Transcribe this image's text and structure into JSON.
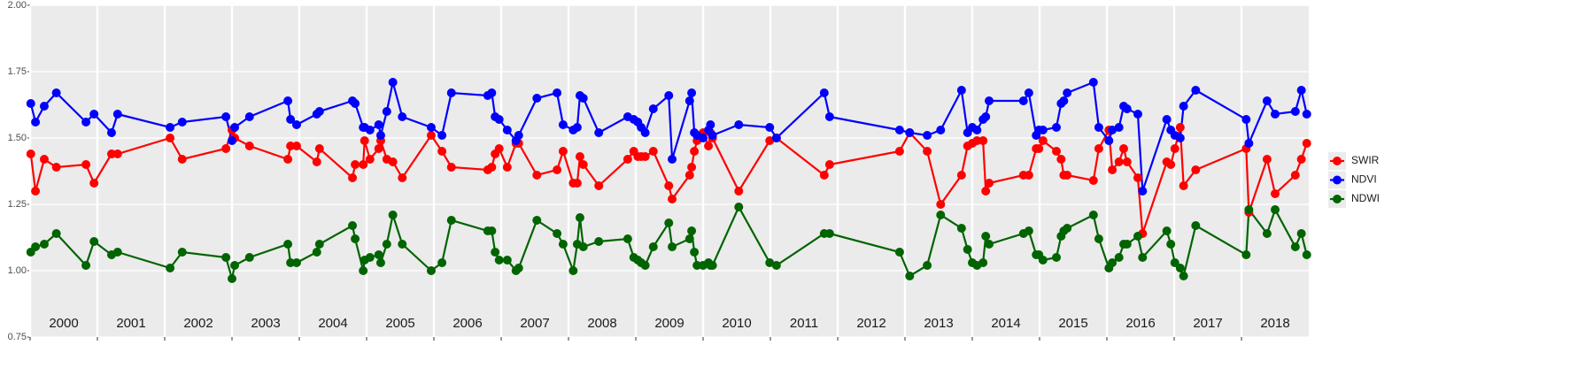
{
  "chart_data": {
    "type": "line",
    "x": [
      2000.01,
      2000.08,
      2000.21,
      2000.39,
      2000.83,
      2000.95,
      2001.21,
      2001.3,
      2002.08,
      2002.26,
      2002.91,
      2003.0,
      2003.04,
      2003.26,
      2003.83,
      2003.87,
      2003.96,
      2004.26,
      2004.3,
      2004.79,
      2004.83,
      2004.95,
      2004.97,
      2005.05,
      2005.18,
      2005.21,
      2005.3,
      2005.39,
      2005.53,
      2005.96,
      2006.12,
      2006.26,
      2006.8,
      2006.86,
      2006.91,
      2006.97,
      2007.09,
      2007.22,
      2007.26,
      2007.53,
      2007.83,
      2007.92,
      2008.07,
      2008.13,
      2008.17,
      2008.22,
      2008.45,
      2008.88,
      2008.97,
      2009.03,
      2009.08,
      2009.14,
      2009.26,
      2009.49,
      2009.54,
      2009.8,
      2009.83,
      2009.87,
      2009.91,
      2010.0,
      2010.08,
      2010.11,
      2010.14,
      2010.53,
      2010.99,
      2011.09,
      2011.8,
      2011.88,
      2012.92,
      2013.07,
      2013.33,
      2013.53,
      2013.84,
      2013.93,
      2014.0,
      2014.07,
      2014.16,
      2014.2,
      2014.25,
      2014.76,
      2014.84,
      2014.95,
      2014.99,
      2015.05,
      2015.25,
      2015.32,
      2015.36,
      2015.41,
      2015.8,
      2015.88,
      2016.03,
      2016.08,
      2016.18,
      2016.25,
      2016.3,
      2016.46,
      2016.53,
      2016.89,
      2016.95,
      2017.01,
      2017.09,
      2017.14,
      2017.32,
      2018.07,
      2018.11,
      2018.38,
      2018.5,
      2018.8,
      2018.89,
      2018.97
    ],
    "series": [
      {
        "name": "SWIR",
        "color": "#ff0000",
        "values": [
          1.44,
          1.3,
          1.42,
          1.39,
          1.4,
          1.33,
          1.44,
          1.44,
          1.5,
          1.42,
          1.46,
          1.53,
          1.5,
          1.47,
          1.42,
          1.47,
          1.47,
          1.41,
          1.46,
          1.35,
          1.4,
          1.4,
          1.49,
          1.42,
          1.46,
          1.49,
          1.42,
          1.41,
          1.35,
          1.51,
          1.45,
          1.39,
          1.38,
          1.39,
          1.44,
          1.46,
          1.39,
          1.48,
          1.48,
          1.36,
          1.38,
          1.45,
          1.33,
          1.33,
          1.43,
          1.4,
          1.32,
          1.42,
          1.45,
          1.43,
          1.43,
          1.43,
          1.45,
          1.32,
          1.27,
          1.36,
          1.39,
          1.45,
          1.49,
          1.52,
          1.47,
          1.52,
          1.5,
          1.3,
          1.49,
          1.5,
          1.36,
          1.4,
          1.45,
          1.52,
          1.45,
          1.25,
          1.36,
          1.47,
          1.48,
          1.49,
          1.49,
          1.3,
          1.33,
          1.36,
          1.36,
          1.46,
          1.46,
          1.49,
          1.45,
          1.42,
          1.36,
          1.36,
          1.34,
          1.46,
          1.53,
          1.38,
          1.41,
          1.46,
          1.41,
          1.35,
          1.14,
          1.41,
          1.4,
          1.46,
          1.54,
          1.32,
          1.38,
          1.46,
          1.22,
          1.42,
          1.29,
          1.36,
          1.42,
          1.48
        ]
      },
      {
        "name": "NDVI",
        "color": "#0000ff",
        "values": [
          1.63,
          1.56,
          1.62,
          1.67,
          1.56,
          1.59,
          1.52,
          1.59,
          1.54,
          1.56,
          1.58,
          1.49,
          1.54,
          1.58,
          1.64,
          1.57,
          1.55,
          1.59,
          1.6,
          1.64,
          1.63,
          1.54,
          1.54,
          1.53,
          1.55,
          1.51,
          1.6,
          1.71,
          1.58,
          1.54,
          1.51,
          1.67,
          1.66,
          1.67,
          1.58,
          1.57,
          1.53,
          1.49,
          1.51,
          1.65,
          1.67,
          1.55,
          1.53,
          1.54,
          1.66,
          1.65,
          1.52,
          1.58,
          1.57,
          1.56,
          1.54,
          1.52,
          1.61,
          1.66,
          1.42,
          1.64,
          1.67,
          1.52,
          1.51,
          1.5,
          1.53,
          1.55,
          1.51,
          1.55,
          1.54,
          1.5,
          1.67,
          1.58,
          1.53,
          1.52,
          1.51,
          1.53,
          1.68,
          1.52,
          1.54,
          1.53,
          1.57,
          1.58,
          1.64,
          1.64,
          1.67,
          1.51,
          1.53,
          1.53,
          1.54,
          1.63,
          1.64,
          1.67,
          1.71,
          1.54,
          1.49,
          1.53,
          1.54,
          1.62,
          1.61,
          1.59,
          1.3,
          1.57,
          1.53,
          1.51,
          1.5,
          1.62,
          1.68,
          1.57,
          1.48,
          1.64,
          1.59,
          1.6,
          1.68,
          1.59
        ]
      },
      {
        "name": "NDWI",
        "color": "#006400",
        "values": [
          1.07,
          1.09,
          1.1,
          1.14,
          1.02,
          1.11,
          1.06,
          1.07,
          1.01,
          1.07,
          1.05,
          0.97,
          1.02,
          1.05,
          1.1,
          1.03,
          1.03,
          1.07,
          1.1,
          1.17,
          1.12,
          1.0,
          1.04,
          1.05,
          1.06,
          1.03,
          1.1,
          1.21,
          1.1,
          1.0,
          1.03,
          1.19,
          1.15,
          1.15,
          1.07,
          1.04,
          1.04,
          1.0,
          1.01,
          1.19,
          1.14,
          1.1,
          1.0,
          1.1,
          1.2,
          1.09,
          1.11,
          1.12,
          1.05,
          1.04,
          1.03,
          1.02,
          1.09,
          1.18,
          1.09,
          1.12,
          1.15,
          1.07,
          1.02,
          1.02,
          1.03,
          1.02,
          1.02,
          1.24,
          1.03,
          1.02,
          1.14,
          1.14,
          1.07,
          0.98,
          1.02,
          1.21,
          1.16,
          1.08,
          1.03,
          1.02,
          1.03,
          1.13,
          1.1,
          1.14,
          1.15,
          1.06,
          1.06,
          1.04,
          1.05,
          1.13,
          1.15,
          1.16,
          1.21,
          1.12,
          1.01,
          1.03,
          1.05,
          1.1,
          1.1,
          1.13,
          1.05,
          1.15,
          1.1,
          1.03,
          1.01,
          0.98,
          1.17,
          1.06,
          1.23,
          1.14,
          1.23,
          1.09,
          1.14,
          1.06
        ]
      }
    ],
    "xlim": [
      2000,
      2019
    ],
    "xticks": [
      2000,
      2001,
      2002,
      2003,
      2004,
      2005,
      2006,
      2007,
      2008,
      2009,
      2010,
      2011,
      2012,
      2013,
      2014,
      2015,
      2016,
      2017,
      2018
    ],
    "ylim": [
      0.75,
      2.0
    ],
    "yticks": [
      0.75,
      {
        "value": 1.0,
        "label": "1.00"
      },
      1.25,
      {
        "value": 1.5,
        "label": "1.50"
      },
      1.75,
      {
        "value": 2.0,
        "label": "2.00"
      }
    ],
    "grid": true,
    "legend": "right"
  }
}
